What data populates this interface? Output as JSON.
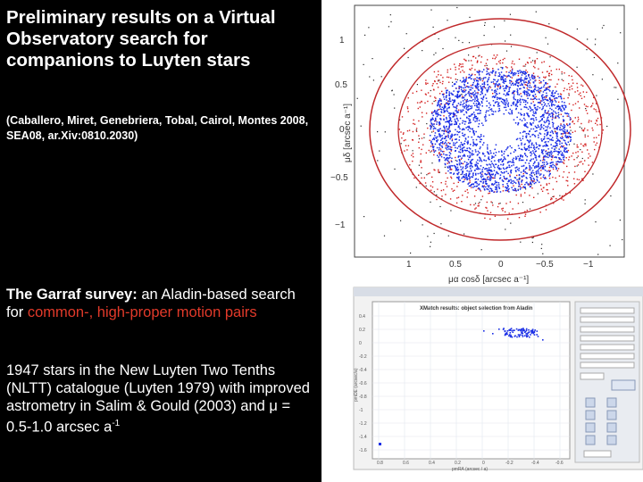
{
  "title": "Preliminary results on a Virtual Observatory search for companions to Luyten stars",
  "citation": "(Caballero, Miret, Genebriera, Tobal, Cairol, Montes 2008, SEA08, ar.Xiv:0810.2030)",
  "survey": {
    "name": "The Garraf survey:",
    "text_a": " an Aladin-based search for ",
    "highlight": "common-, high-proper motion pairs"
  },
  "stars_text": "1947 stars in the New Luyten Two Tenths (NLTT) catalogue (Luyten 1979) with improved astrometry in Salim & Gould (2003) and",
  "mu_symbol": "μ",
  "mu_range": " = 0.5-1.0 arcsec a",
  "mu_exp": "-1",
  "plot": {
    "y_ticks": [
      "1",
      "0.5",
      "0",
      "−0.5",
      "−1"
    ],
    "x_ticks": [
      "1",
      "0.5",
      "0",
      "−0.5",
      "−1"
    ],
    "y_label": "μδ [arcsec a⁻¹]",
    "x_label": "μα cosδ [arcsec a⁻¹]",
    "colors": {
      "field": "#222222",
      "candidates": "#d42020",
      "pairs": "#1a2ee6",
      "ring": "#c0282a"
    }
  },
  "aladin": {
    "title": "XMatch results: object selection from Aladin",
    "y_ticks": [
      "0.4",
      "0.2",
      "0",
      "-0.2",
      "-0.4",
      "-0.6",
      "-0.8",
      "-1",
      "-1.2",
      "-1.4",
      "-1.6"
    ],
    "x_ticks": [
      "0.8",
      "0.6",
      "0.4",
      "0.2",
      "0",
      "-0.2",
      "-0.4",
      "-0.6"
    ],
    "x_label": "pmRA (arcsec / a)",
    "y_label": "pmDE (arcsec/a)"
  }
}
